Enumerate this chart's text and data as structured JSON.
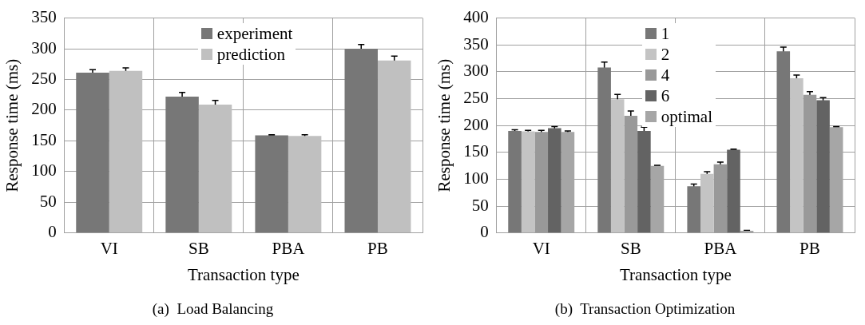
{
  "chart_data": [
    {
      "type": "bar",
      "title": "(a)  Load Balancing",
      "xlabel": "Transaction type",
      "ylabel": "Response time (ms)",
      "categories": [
        "VI",
        "SB",
        "PBA",
        "PB"
      ],
      "series": [
        {
          "name": "experiment",
          "color": "#777777",
          "values": [
            261,
            222,
            159,
            300
          ],
          "errors": [
            5,
            7,
            1,
            7
          ]
        },
        {
          "name": "prediction",
          "color": "#c0c0c0",
          "values": [
            264,
            209,
            158,
            281
          ],
          "errors": [
            5,
            7,
            2,
            7
          ]
        }
      ],
      "ylim": [
        0,
        350
      ],
      "yticks": [
        0,
        50,
        100,
        150,
        200,
        250,
        300,
        350
      ],
      "grid": true,
      "legend": "top"
    },
    {
      "type": "bar",
      "title": "(b)  Transaction Optimization",
      "xlabel": "Transaction type",
      "ylabel": "Response time (ms)",
      "categories": [
        "VI",
        "SB",
        "PBA",
        "PB"
      ],
      "series": [
        {
          "name": "1",
          "color": "#777777",
          "values": [
            190,
            308,
            87,
            338
          ],
          "errors": [
            2,
            10,
            4,
            8
          ]
        },
        {
          "name": "2",
          "color": "#c4c4c4",
          "values": [
            189,
            249,
            110,
            288
          ],
          "errors": [
            2,
            9,
            4,
            6
          ]
        },
        {
          "name": "4",
          "color": "#999999",
          "values": [
            188,
            218,
            128,
            257
          ],
          "errors": [
            3,
            9,
            4,
            6
          ]
        },
        {
          "name": "6",
          "color": "#636363",
          "values": [
            195,
            190,
            155,
            247
          ],
          "errors": [
            3,
            7,
            1,
            5
          ]
        },
        {
          "name": "optimal",
          "color": "#a6a6a6",
          "values": [
            188,
            125,
            4,
            197
          ],
          "errors": [
            2,
            1,
            1,
            1
          ]
        }
      ],
      "ylim": [
        0,
        400
      ],
      "yticks": [
        0,
        50,
        100,
        150,
        200,
        250,
        300,
        350,
        400
      ],
      "grid": true,
      "legend": "top"
    }
  ]
}
